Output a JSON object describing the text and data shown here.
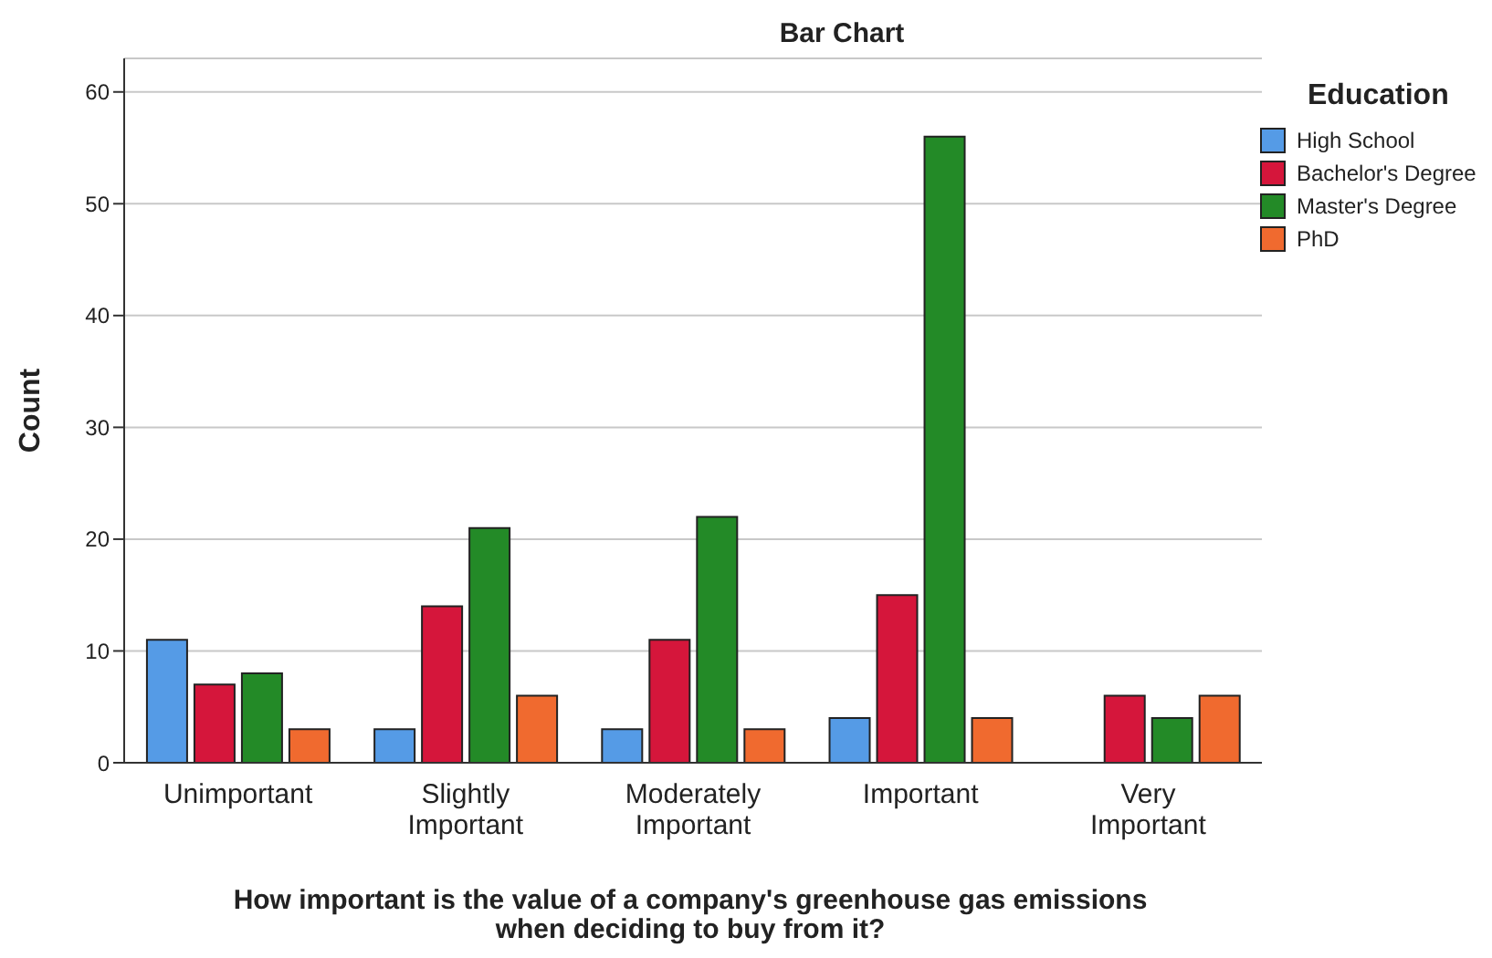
{
  "chart_data": {
    "type": "bar",
    "title": "Bar Chart",
    "xlabel": "How important is the value of a company's greenhouse gas emissions when deciding to buy from it?",
    "ylabel": "Count",
    "legend_title": "Education",
    "categories": [
      "Unimportant",
      "Slightly Important",
      "Moderately Important",
      "Important",
      "Very Important"
    ],
    "series": [
      {
        "name": "High School",
        "color": "#559be6",
        "values": [
          11,
          3,
          3,
          4,
          null
        ]
      },
      {
        "name": "Bachelor's Degree",
        "color": "#d5163b",
        "values": [
          7,
          14,
          11,
          15,
          6
        ]
      },
      {
        "name": "Master's Degree",
        "color": "#238a27",
        "values": [
          8,
          21,
          22,
          56,
          4
        ]
      },
      {
        "name": "PhD",
        "color": "#f06a2f",
        "values": [
          3,
          6,
          3,
          4,
          6
        ]
      }
    ],
    "ylim": [
      0,
      63
    ],
    "yticks": [
      0,
      10,
      20,
      30,
      40,
      50,
      60
    ],
    "grid": "y",
    "legend": "top right"
  }
}
